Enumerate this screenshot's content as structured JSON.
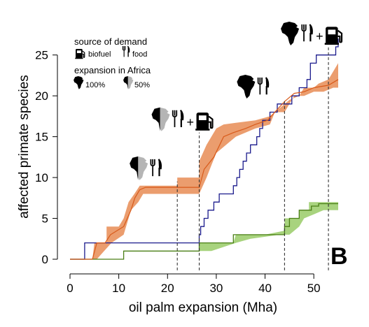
{
  "chart_data": {
    "type": "line",
    "panel_label": "B",
    "xlabel": "oil palm expansion (Mha)",
    "ylabel": "affected primate species",
    "xlim": [
      -1,
      57
    ],
    "ylim": [
      -0.5,
      27.5
    ],
    "x_ticks": [
      0,
      10,
      20,
      30,
      40,
      50
    ],
    "y_ticks": [
      0,
      5,
      10,
      15,
      20,
      25
    ],
    "grid": false,
    "legend": {
      "placement": "top-left",
      "source_heading": "source of demand",
      "biofuel_label": "biofuel",
      "food_label": "food",
      "expansion_heading": "expansion in Africa",
      "full_label": "100%",
      "half_label": "50%"
    },
    "series": [
      {
        "role": "biofuel-and-food-africa-100",
        "color": "#1a1a8c",
        "step": [
          [
            0,
            0
          ],
          [
            3,
            0
          ],
          [
            3,
            2
          ],
          [
            26.5,
            2
          ],
          [
            26.5,
            3
          ],
          [
            26.8,
            3
          ],
          [
            26.8,
            4
          ],
          [
            27.5,
            4
          ],
          [
            27.5,
            5
          ],
          [
            28.3,
            5
          ],
          [
            28.3,
            6
          ],
          [
            29.5,
            6
          ],
          [
            29.5,
            7
          ],
          [
            30.6,
            7
          ],
          [
            30.6,
            8
          ],
          [
            33.5,
            8
          ],
          [
            33.5,
            9
          ],
          [
            34.2,
            9
          ],
          [
            34.2,
            10
          ],
          [
            34.8,
            10
          ],
          [
            34.8,
            11
          ],
          [
            35.5,
            11
          ],
          [
            35.5,
            12
          ],
          [
            36.2,
            12
          ],
          [
            36.2,
            13
          ],
          [
            37,
            13
          ],
          [
            37,
            14
          ],
          [
            38.3,
            14
          ],
          [
            38.3,
            15
          ],
          [
            38.9,
            15
          ],
          [
            38.9,
            16
          ],
          [
            39.5,
            16
          ],
          [
            39.5,
            17
          ],
          [
            41,
            17
          ],
          [
            41,
            18
          ],
          [
            42.5,
            18
          ],
          [
            42.5,
            19
          ],
          [
            45.5,
            19
          ],
          [
            45.5,
            20
          ],
          [
            47,
            20
          ],
          [
            47,
            21
          ],
          [
            48.6,
            21
          ],
          [
            48.6,
            22
          ],
          [
            49.3,
            22
          ],
          [
            49.3,
            24
          ],
          [
            50.5,
            24
          ],
          [
            50.5,
            25
          ],
          [
            54.5,
            25
          ],
          [
            54.5,
            26
          ],
          [
            55,
            26
          ],
          [
            55,
            27
          ]
        ]
      },
      {
        "role": "food-africa-50",
        "color": "#4a7f16",
        "step": [
          [
            0,
            0
          ],
          [
            11,
            0
          ],
          [
            11,
            1
          ],
          [
            26.5,
            1
          ],
          [
            26.5,
            2
          ],
          [
            33.5,
            2
          ],
          [
            33.5,
            3
          ],
          [
            44,
            3
          ],
          [
            44,
            4
          ],
          [
            45,
            4
          ],
          [
            45,
            5
          ],
          [
            47,
            5
          ],
          [
            47,
            6
          ],
          [
            49.5,
            6
          ],
          [
            49.5,
            6.5
          ],
          [
            51,
            6.5
          ],
          [
            51,
            6.8
          ],
          [
            55,
            6.8
          ]
        ]
      },
      {
        "role": "median-orange",
        "color": "#d85a1a",
        "smooth": [
          [
            0,
            0
          ],
          [
            4.6,
            0
          ],
          [
            5.5,
            2
          ],
          [
            7.2,
            2
          ],
          [
            8.3,
            3
          ],
          [
            11,
            4
          ],
          [
            12.5,
            6
          ],
          [
            13.3,
            7.5
          ],
          [
            14.3,
            8.5
          ],
          [
            15.5,
            8.8
          ],
          [
            21.5,
            8.8
          ],
          [
            23.5,
            8.8
          ],
          [
            26.5,
            8.8
          ],
          [
            27.5,
            11
          ],
          [
            29.5,
            12.5
          ],
          [
            31.5,
            15
          ],
          [
            33.5,
            15.5
          ],
          [
            36,
            16
          ],
          [
            38,
            16.5
          ],
          [
            40.5,
            17
          ],
          [
            42,
            18
          ],
          [
            44,
            19.3
          ],
          [
            46,
            20.3
          ],
          [
            48,
            20.5
          ],
          [
            50,
            21
          ],
          [
            53,
            21.3
          ],
          [
            55,
            22
          ]
        ]
      }
    ],
    "bands": [
      {
        "role": "orange-uncertainty",
        "color": "#eb9d6e",
        "upper": [
          [
            4.6,
            0
          ],
          [
            5,
            2
          ],
          [
            7.5,
            2
          ],
          [
            7.5,
            4
          ],
          [
            10,
            4
          ],
          [
            11,
            5
          ],
          [
            12,
            7
          ],
          [
            13.2,
            8
          ],
          [
            14.3,
            9
          ],
          [
            22,
            9
          ],
          [
            22,
            10
          ],
          [
            26.5,
            10
          ],
          [
            26.5,
            12
          ],
          [
            28,
            14
          ],
          [
            29,
            15
          ],
          [
            30,
            16
          ],
          [
            31.5,
            16.5
          ],
          [
            34,
            16.7
          ],
          [
            38,
            17
          ],
          [
            41,
            17.5
          ],
          [
            42,
            18
          ],
          [
            45,
            19.5
          ],
          [
            47,
            20
          ],
          [
            48,
            21
          ],
          [
            50,
            21
          ],
          [
            51,
            21.5
          ],
          [
            53,
            22
          ],
          [
            54,
            23
          ],
          [
            55,
            24
          ]
        ],
        "lower": [
          [
            55,
            21
          ],
          [
            54,
            21
          ],
          [
            52,
            20.5
          ],
          [
            50,
            20.5
          ],
          [
            48,
            20
          ],
          [
            46,
            20
          ],
          [
            45,
            19
          ],
          [
            44,
            18
          ],
          [
            42,
            18
          ],
          [
            41,
            16.5
          ],
          [
            38,
            16
          ],
          [
            36,
            15.5
          ],
          [
            34,
            15
          ],
          [
            30,
            13
          ],
          [
            29,
            11.5
          ],
          [
            28,
            10
          ],
          [
            26.5,
            8
          ],
          [
            15,
            8
          ],
          [
            14,
            7
          ],
          [
            12.5,
            6
          ],
          [
            12,
            5
          ],
          [
            11,
            3
          ],
          [
            8.5,
            2
          ],
          [
            7,
            1
          ],
          [
            5.5,
            0
          ]
        ]
      },
      {
        "role": "green-uncertainty",
        "color": "#a8d37e",
        "upper": [
          [
            26.5,
            1
          ],
          [
            26.5,
            2
          ],
          [
            33.5,
            2
          ],
          [
            34,
            3
          ],
          [
            40,
            3
          ],
          [
            44,
            3.5
          ],
          [
            44,
            5
          ],
          [
            47,
            5
          ],
          [
            47,
            6
          ],
          [
            49,
            6
          ],
          [
            49,
            7
          ],
          [
            55,
            7
          ]
        ],
        "lower": [
          [
            55,
            6
          ],
          [
            52,
            6
          ],
          [
            50,
            5.5
          ],
          [
            48,
            5
          ],
          [
            47,
            4
          ],
          [
            45,
            3
          ],
          [
            43,
            3
          ],
          [
            37,
            2.5
          ],
          [
            34,
            2
          ],
          [
            29,
            1
          ],
          [
            26.5,
            1
          ]
        ]
      }
    ],
    "markers": [
      {
        "x": 22,
        "y_top": 9.5,
        "icons": [
          "africa-half",
          "food"
        ]
      },
      {
        "x": 26.5,
        "y_top": 15.5,
        "icons": [
          "africa-half",
          "food",
          "plus",
          "biofuel"
        ]
      },
      {
        "x": 44,
        "y_top": 19.5,
        "icons": [
          "africa-full",
          "food"
        ]
      },
      {
        "x": 53,
        "y_top": 26,
        "icons": [
          "africa-full",
          "food",
          "plus",
          "biofuel"
        ]
      }
    ]
  }
}
